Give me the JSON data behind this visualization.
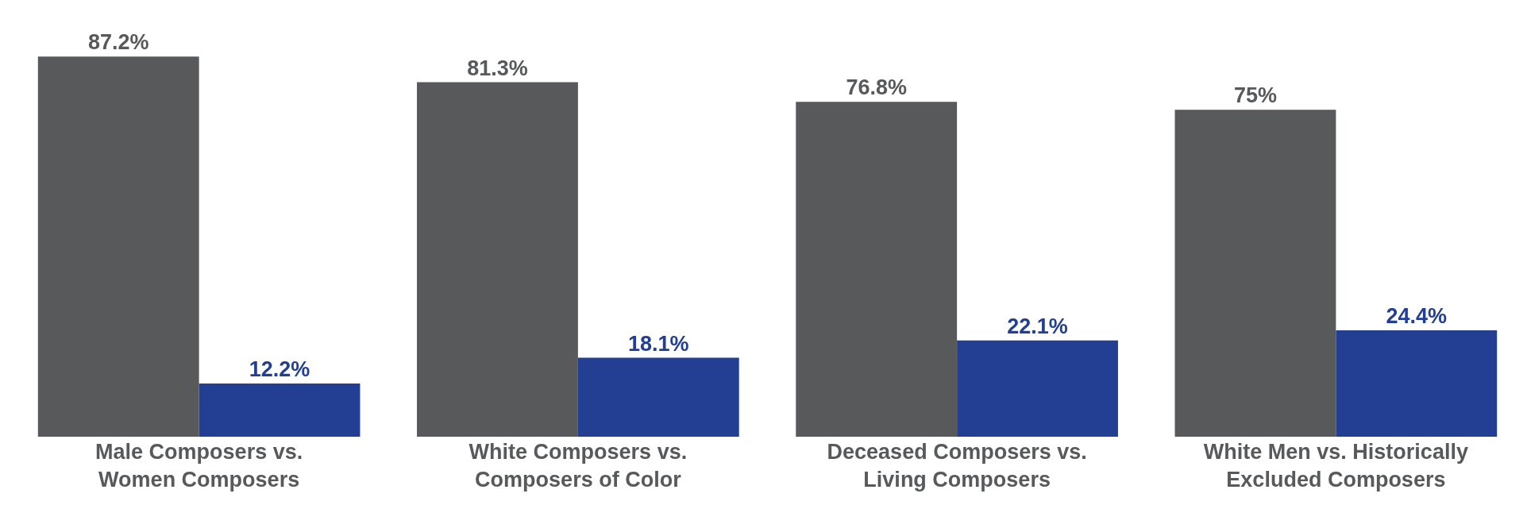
{
  "chart_data": {
    "type": "bar",
    "categories": [
      "Male Composers vs.\nWomen Composers",
      "White Composers vs.\nComposers of Color",
      "Deceased Composers vs.\nLiving Composers",
      "White Men vs. Historically\nExcluded Composers"
    ],
    "series": [
      {
        "color": "#58595b",
        "values": [
          87.2,
          81.3,
          76.8,
          75
        ],
        "value_labels": [
          "87.2%",
          "81.3%",
          "76.8%",
          "75%"
        ]
      },
      {
        "color": "#233f94",
        "values": [
          12.2,
          18.1,
          22.1,
          24.4
        ],
        "value_labels": [
          "12.2%",
          "18.1%",
          "22.1%",
          "24.4%"
        ]
      }
    ],
    "grid": false
  }
}
